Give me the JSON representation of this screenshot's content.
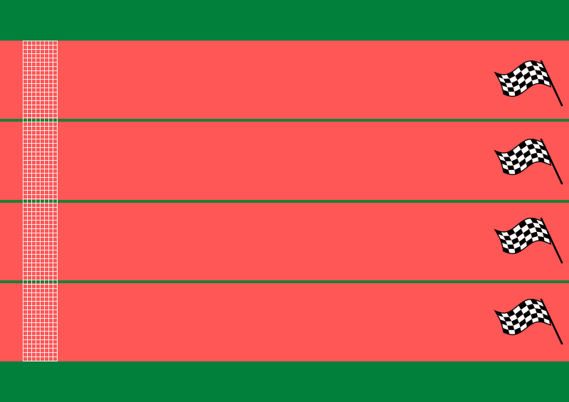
{
  "game": {
    "type": "race-track",
    "lane_count": 4,
    "lanes": [
      {
        "id": 1,
        "finish": "checkered-flag-icon"
      },
      {
        "id": 2,
        "finish": "checkered-flag-icon"
      },
      {
        "id": 3,
        "finish": "checkered-flag-icon"
      },
      {
        "id": 4,
        "finish": "checkered-flag-icon"
      }
    ]
  },
  "colors": {
    "grass": "#00803a",
    "lane": "#ff5656",
    "lane_divider": "#1b7f36",
    "start_grid": "#ffffff",
    "flag_dark": "#000000",
    "flag_light": "#ffffff"
  }
}
